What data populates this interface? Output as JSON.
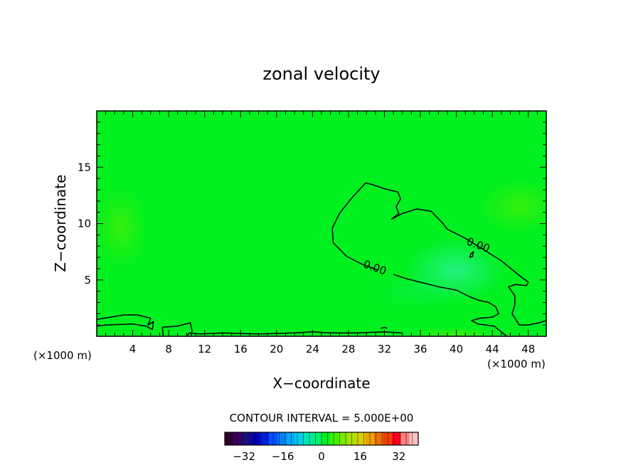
{
  "chart_data": {
    "type": "heatmap",
    "title": "zonal velocity",
    "xlabel": "X−coordinate",
    "ylabel": "Z−coordinate",
    "x_unit_left": "(×1000 m)",
    "x_unit_right": "(×1000 m)",
    "xlim": [
      0,
      50
    ],
    "ylim": [
      0,
      20
    ],
    "xticks": [
      4,
      8,
      12,
      16,
      20,
      24,
      28,
      32,
      36,
      40,
      44,
      48
    ],
    "xtick_labels": [
      "4",
      "8",
      "12",
      "16",
      "20",
      "24",
      "28",
      "32",
      "36",
      "40",
      "44",
      "48"
    ],
    "yticks": [
      5,
      10,
      15
    ],
    "ytick_labels": [
      "5",
      "10",
      "15"
    ],
    "field_color": "#00f020",
    "contour_interval_text": "CONTOUR INTERVAL = 5.000E+00",
    "contour_labels": [
      {
        "text": "0.00",
        "x": 30.8,
        "z": 5.8
      },
      {
        "text": "0.00",
        "x": 42.3,
        "z": 7.8
      }
    ],
    "contours": [
      {
        "level": 0.0,
        "points": [
          [
            31.2,
            5.9
          ],
          [
            29.5,
            6.4
          ],
          [
            27.8,
            7.1
          ],
          [
            26.3,
            8.3
          ],
          [
            26.2,
            9.6
          ],
          [
            27.0,
            10.9
          ],
          [
            28.4,
            12.3
          ],
          [
            29.9,
            13.6
          ],
          [
            30.5,
            13.5
          ],
          [
            32.0,
            13.1
          ],
          [
            33.5,
            12.8
          ],
          [
            33.8,
            12.2
          ],
          [
            33.3,
            11.5
          ],
          [
            33.6,
            10.9
          ],
          [
            32.8,
            10.4
          ],
          [
            34.0,
            10.9
          ],
          [
            35.6,
            11.3
          ],
          [
            37.2,
            11.1
          ],
          [
            38.4,
            10.1
          ],
          [
            39.0,
            9.5
          ],
          [
            41.0,
            8.7
          ],
          [
            43.0,
            7.7
          ],
          [
            45.0,
            6.7
          ],
          [
            47.0,
            5.4
          ],
          [
            48.0,
            4.8
          ],
          [
            47.8,
            4.5
          ],
          [
            46.6,
            4.6
          ],
          [
            45.8,
            4.4
          ],
          [
            46.5,
            3.6
          ],
          [
            46.5,
            2.8
          ],
          [
            46.2,
            2.0
          ],
          [
            47.0,
            1.0
          ],
          [
            48.0,
            1.0
          ],
          [
            49.2,
            1.2
          ],
          [
            50.0,
            1.4
          ]
        ]
      },
      {
        "level": 0.0,
        "points": [
          [
            33.0,
            5.5
          ],
          [
            34.5,
            5.1
          ],
          [
            36.0,
            4.8
          ],
          [
            38.0,
            4.4
          ],
          [
            40.0,
            4.1
          ],
          [
            41.5,
            3.5
          ],
          [
            42.5,
            3.2
          ],
          [
            43.6,
            3.0
          ],
          [
            44.4,
            2.6
          ],
          [
            44.7,
            2.0
          ],
          [
            44.0,
            1.7
          ],
          [
            42.6,
            1.6
          ],
          [
            41.7,
            1.4
          ],
          [
            42.4,
            1.1
          ],
          [
            44.2,
            0.9
          ],
          [
            45.0,
            0.4
          ],
          [
            45.6,
            0.0
          ]
        ]
      },
      {
        "level": 0.0,
        "points": [
          [
            41.6,
            7.3
          ],
          [
            41.9,
            7.5
          ],
          [
            41.8,
            7.1
          ],
          [
            41.5,
            7.0
          ],
          [
            41.6,
            7.3
          ]
        ]
      },
      {
        "level": 0.0,
        "points": [
          [
            0.0,
            1.5
          ],
          [
            1.5,
            1.7
          ],
          [
            3.0,
            1.9
          ],
          [
            4.5,
            1.9
          ],
          [
            6.0,
            1.6
          ],
          [
            5.7,
            1.0
          ],
          [
            6.3,
            1.3
          ],
          [
            6.2,
            0.6
          ],
          [
            5.5,
            0.9
          ],
          [
            4.0,
            1.1
          ],
          [
            1.0,
            1.0
          ],
          [
            0.0,
            0.9
          ]
        ]
      },
      {
        "level": 0.0,
        "points": [
          [
            7.4,
            0.0
          ],
          [
            7.3,
            0.8
          ],
          [
            9.0,
            0.9
          ],
          [
            10.4,
            1.2
          ],
          [
            10.6,
            0.5
          ],
          [
            10.5,
            0.0
          ]
        ]
      },
      {
        "level": 0.0,
        "points": [
          [
            10.0,
            0.0
          ],
          [
            10.3,
            0.3
          ],
          [
            11.5,
            0.2
          ],
          [
            14.0,
            0.3
          ],
          [
            18.0,
            0.2
          ],
          [
            22.0,
            0.3
          ],
          [
            24.0,
            0.4
          ],
          [
            26.0,
            0.3
          ],
          [
            29.0,
            0.3
          ],
          [
            32.0,
            0.4
          ],
          [
            34.0,
            0.3
          ]
        ]
      },
      {
        "level": 0.0,
        "points": [
          [
            31.6,
            0.7
          ],
          [
            32.0,
            0.8
          ],
          [
            32.3,
            0.7
          ]
        ]
      }
    ],
    "colorbar": {
      "ticks": [
        -32,
        -16,
        0,
        16,
        32
      ],
      "tick_labels": [
        "−32",
        "−16",
        "0",
        "16",
        "32"
      ],
      "range": [
        -40,
        40
      ],
      "colors": [
        "#300030",
        "#3a0060",
        "#1a1080",
        "#0000b0",
        "#0020e0",
        "#0050ff",
        "#0080ff",
        "#00a8ff",
        "#00d0e8",
        "#00e8b0",
        "#00f070",
        "#00f020",
        "#40f000",
        "#80e800",
        "#b0e000",
        "#d8d000",
        "#f0a000",
        "#f07000",
        "#f04000",
        "#ff0020",
        "#ff8080",
        "#ffc0c0"
      ]
    }
  }
}
